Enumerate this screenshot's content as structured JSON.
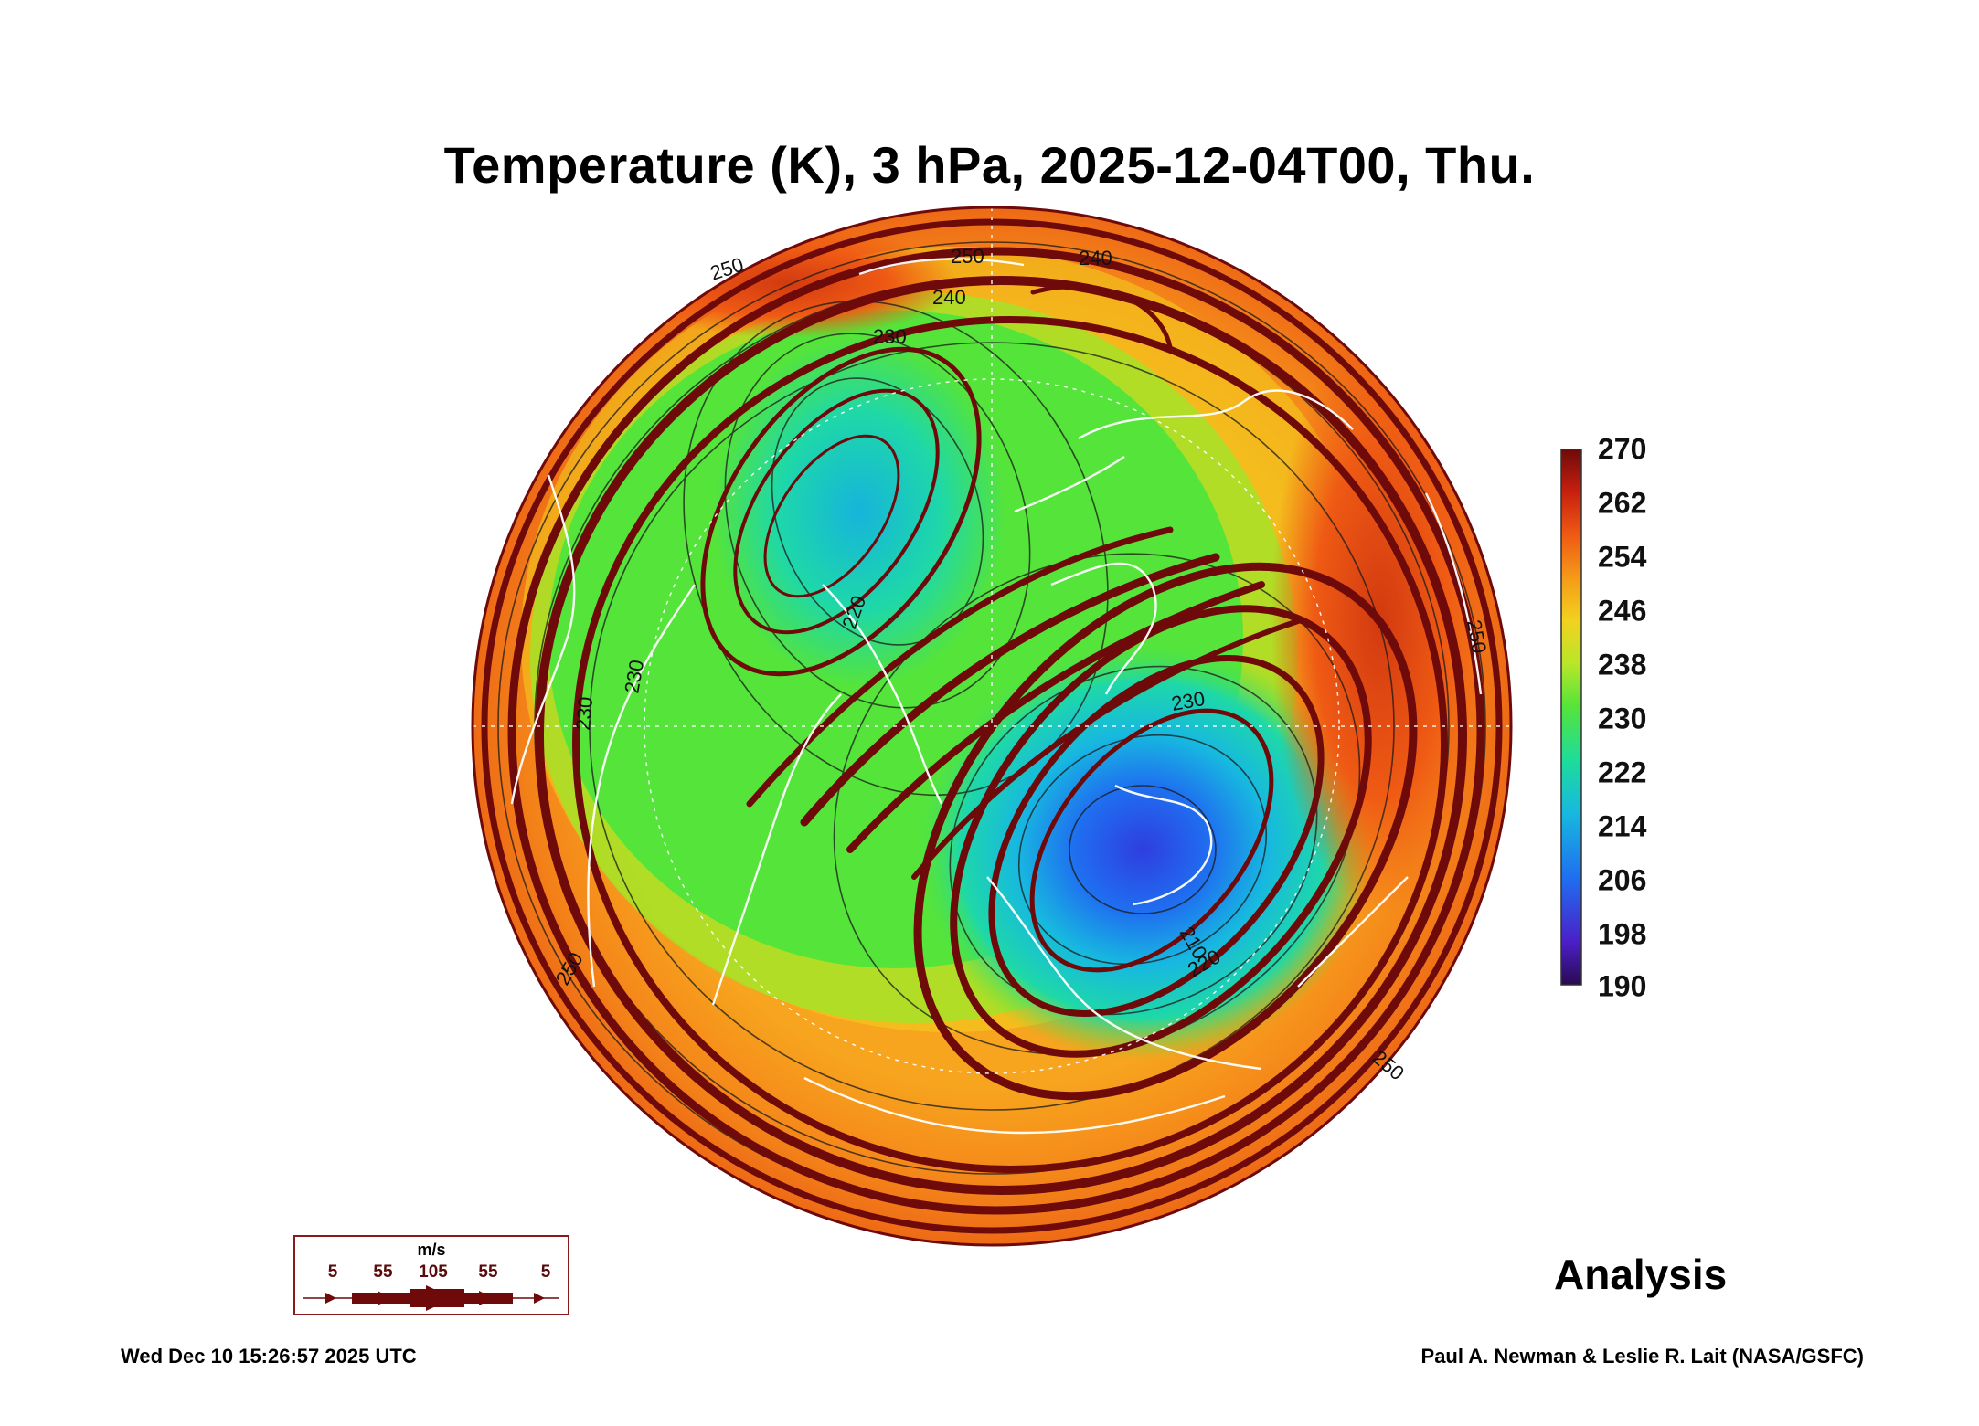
{
  "title": "Temperature (K), 3 hPa, 2025-12-04T00, Thu.",
  "colorbar": {
    "ticks": [
      "270",
      "262",
      "254",
      "246",
      "238",
      "230",
      "222",
      "214",
      "206",
      "198",
      "190"
    ],
    "min": 190,
    "max": 270,
    "colors": [
      "#3b0a5a",
      "#3f2fd6",
      "#1f86f2",
      "#16c8c8",
      "#2fe06a",
      "#9be82a",
      "#f2d21e",
      "#f59a18",
      "#ef5a14",
      "#c8200e",
      "#7a0c0c"
    ]
  },
  "contour_labels": [
    "250",
    "250",
    "240",
    "230",
    "220",
    "230",
    "230",
    "230",
    "210",
    "220",
    "240",
    "250",
    "250",
    "250"
  ],
  "wind_legend": {
    "unit": "m/s",
    "values": [
      "5",
      "55",
      "105",
      "55",
      "5"
    ]
  },
  "analysis_label": "Analysis",
  "timestamp": "Wed Dec 10 15:26:57 2025 UTC",
  "credit": "Paul A. Newman & Leslie R. Lait (NASA/GSFC)"
}
